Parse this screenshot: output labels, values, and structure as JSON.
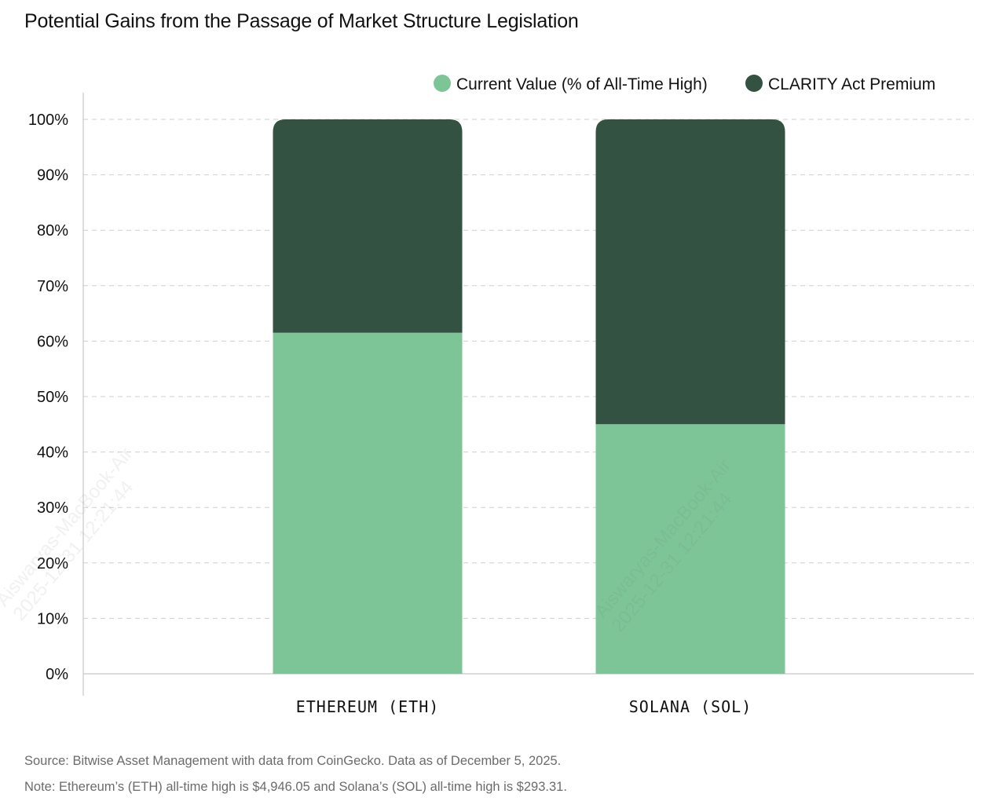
{
  "title": "Potential Gains from the Passage of Market Structure Legislation",
  "footnotes": {
    "source": "Source: Bitwise Asset Management with data from CoinGecko. Data as of December 5, 2025.",
    "note": "Note: Ethereum’s (ETH) all-time high is $4,946.05 and Solana’s (SOL) all-time high is $293.31."
  },
  "watermark": {
    "line1": "Aiswaryas-MacBook-Air",
    "line2": "2025-12-31 12:21:44"
  },
  "colors": {
    "current_value": "#7dc596",
    "premium": "#335241",
    "grid": "#cfcfcf",
    "axis": "#c8c8c8",
    "text": "#111111",
    "footnote": "#6b6b6b"
  },
  "chart_data": {
    "type": "bar",
    "stacked": true,
    "categories": [
      "ETHEREUM (ETH)",
      "SOLANA (SOL)"
    ],
    "series": [
      {
        "name": "Current Value (% of All-Time High)",
        "values": [
          61.5,
          45
        ]
      },
      {
        "name": "CLARITY Act Premium",
        "values": [
          38.5,
          55
        ]
      }
    ],
    "ylim": [
      0,
      100
    ],
    "yticks": [
      0,
      10,
      20,
      30,
      40,
      50,
      60,
      70,
      80,
      90,
      100
    ],
    "ytick_labels": [
      "0%",
      "10%",
      "20%",
      "30%",
      "40%",
      "50%",
      "60%",
      "70%",
      "80%",
      "90%",
      "100%"
    ],
    "xlabel": "",
    "ylabel": "",
    "grid": true,
    "legend_position": "top-right"
  }
}
